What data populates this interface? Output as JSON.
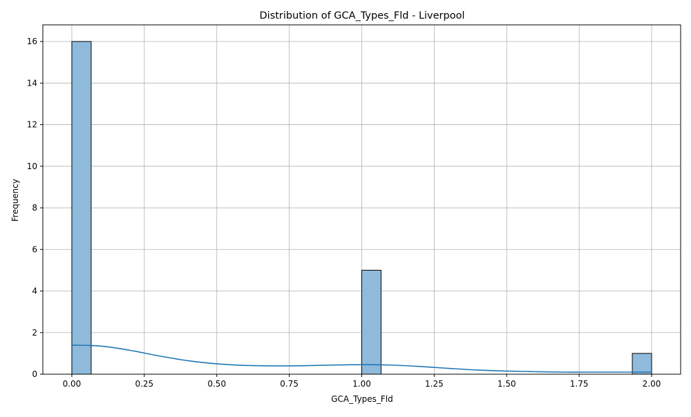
{
  "chart_data": {
    "type": "bar",
    "title": "Distribution of GCA_Types_Fld - Liverpool",
    "xlabel": "GCA_Types_Fld",
    "ylabel": "Frequency",
    "xlim": [
      -0.1,
      2.1
    ],
    "ylim": [
      0,
      16.8
    ],
    "grid": true,
    "xticks": [
      0.0,
      0.25,
      0.5,
      0.75,
      1.0,
      1.25,
      1.5,
      1.75,
      2.0
    ],
    "xtick_labels": [
      "0.00",
      "0.25",
      "0.50",
      "0.75",
      "1.00",
      "1.25",
      "1.50",
      "1.75",
      "2.00"
    ],
    "yticks": [
      0,
      2,
      4,
      6,
      8,
      10,
      12,
      14,
      16
    ],
    "ytick_labels": [
      "0",
      "2",
      "4",
      "6",
      "8",
      "10",
      "12",
      "14",
      "16"
    ],
    "bars": [
      {
        "x0": 0.0,
        "x1": 0.0667,
        "count": 16
      },
      {
        "x0": 1.0,
        "x1": 1.0667,
        "count": 5
      },
      {
        "x0": 1.9333,
        "x1": 2.0,
        "count": 1
      }
    ],
    "kde": {
      "x": [
        0.0,
        0.1,
        0.2,
        0.3,
        0.4,
        0.5,
        0.6,
        0.7,
        0.8,
        0.9,
        1.0,
        1.1,
        1.2,
        1.3,
        1.4,
        1.5,
        1.6,
        1.7,
        1.8,
        1.9,
        2.0
      ],
      "y": [
        1.4,
        1.35,
        1.15,
        0.88,
        0.65,
        0.5,
        0.42,
        0.4,
        0.41,
        0.44,
        0.46,
        0.44,
        0.37,
        0.28,
        0.2,
        0.15,
        0.12,
        0.1,
        0.1,
        0.1,
        0.1
      ]
    },
    "colors": {
      "bar_fill": "#8fbadb",
      "bar_edge": "#000000",
      "kde_line": "#1f77b4",
      "grid": "#b0b0b0"
    }
  }
}
